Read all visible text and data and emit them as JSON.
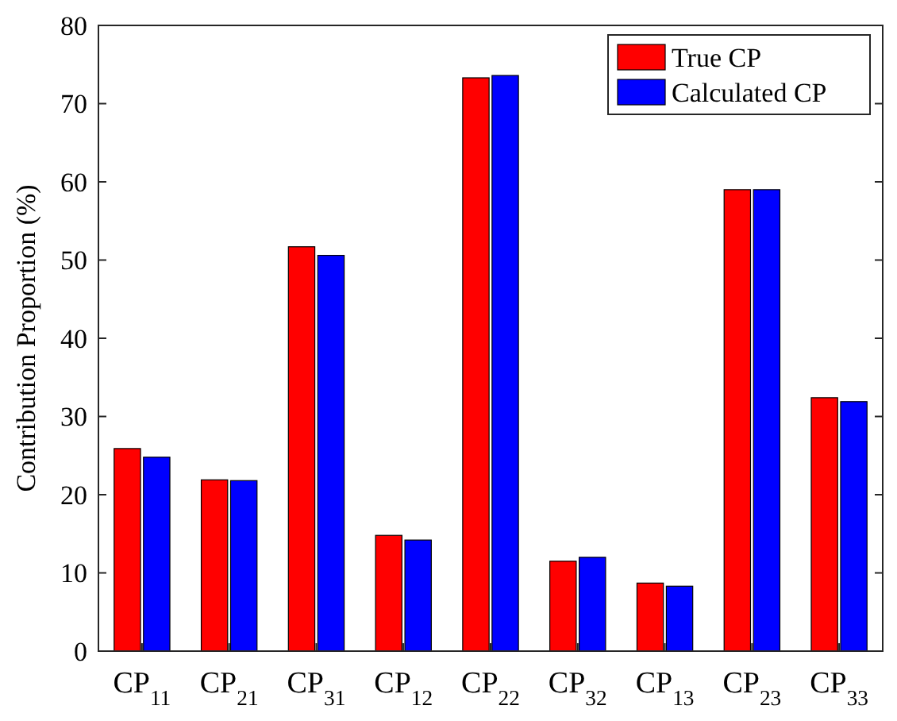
{
  "chart_data": {
    "type": "bar",
    "ylabel": "Contribution Proportion (%)",
    "categories": [
      "CP$_{11}$",
      "CP$_{21}$",
      "CP$_{31}$",
      "CP$_{12}$",
      "CP$_{22}$",
      "CP$_{32}$",
      "CP$_{13}$",
      "CP$_{23}$",
      "CP$_{33}$"
    ],
    "series": [
      {
        "name": "True CP",
        "color": "#ff0000",
        "values": [
          25.9,
          21.9,
          51.7,
          14.8,
          73.3,
          11.5,
          8.7,
          59.0,
          32.4
        ]
      },
      {
        "name": "Calculated CP",
        "color": "#0000ff",
        "values": [
          24.8,
          21.8,
          50.6,
          14.2,
          73.6,
          12.0,
          8.3,
          59.0,
          31.9
        ]
      }
    ],
    "ylim": [
      0,
      80
    ],
    "yticks": [
      0,
      10,
      20,
      30,
      40,
      50,
      60,
      70,
      80
    ],
    "legend": "top right",
    "grid": false
  }
}
